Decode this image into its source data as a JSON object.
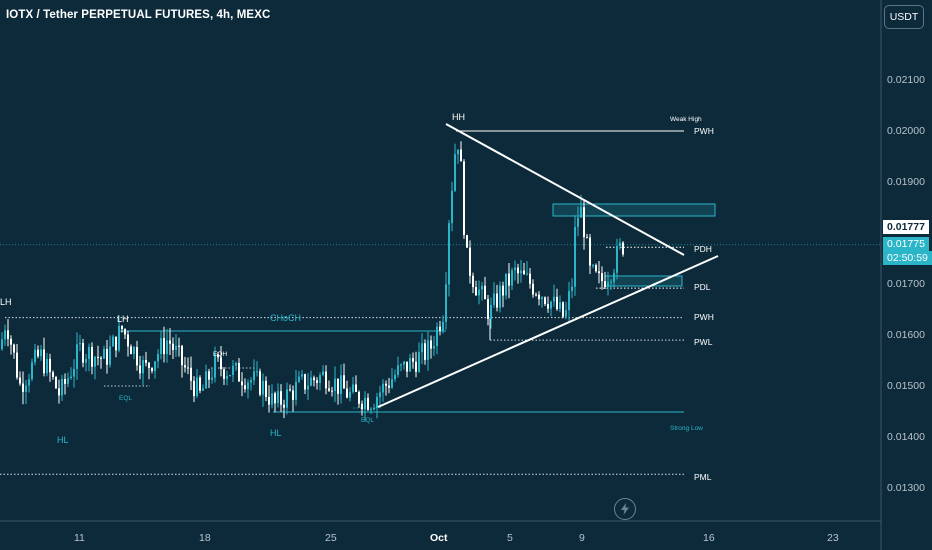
{
  "header": {
    "title": "IOTX / Tether PERPETUAL FUTURES, 4h, MEXC"
  },
  "toolbar": {
    "currency_label": "USDT"
  },
  "colors": {
    "background": "#0c2a3a",
    "bull": "#2bb5c9",
    "bear": "#ffffff",
    "accent": "#2bb5c9",
    "line_white": "#ffffff"
  },
  "price_axis": {
    "ticks": [
      "0.02100",
      "0.02000",
      "0.01900",
      "0.01700",
      "0.01600",
      "0.01500",
      "0.01400",
      "0.01300"
    ],
    "tick_values": [
      0.021,
      0.02,
      0.019,
      0.017,
      0.016,
      0.015,
      0.014,
      0.013
    ],
    "last_price_tag": "0.01777",
    "current_price": "0.01775",
    "countdown": "02:50:59"
  },
  "time_axis": {
    "labels": [
      "11",
      "18",
      "25",
      "Oct",
      "5",
      "9",
      "16",
      "23"
    ]
  },
  "annotations": {
    "hh": "HH",
    "lh_left": "LH",
    "lh_mid": "LH",
    "hl_left": "HL",
    "hl_mid": "HL",
    "choch": "CHoCH",
    "eqh": "EQH",
    "eql_left": "EQL",
    "eql_mid": "EQL",
    "weak_high": "Weak High",
    "strong_low": "Strong Low",
    "pwh_top": "PWH",
    "pdh": "PDH",
    "pdl": "PDL",
    "pwh_mid": "PWH",
    "pwl": "PWL",
    "pml": "PML"
  },
  "chart_data": {
    "type": "candlestick",
    "symbol": "IOTX / Tether PERPETUAL FUTURES",
    "interval": "4h",
    "exchange": "MEXC",
    "levels": {
      "weak_high_pwh": 0.01998,
      "pdh": 0.0177,
      "pdl": 0.0169,
      "pwh": 0.01632,
      "pwl": 0.01588,
      "strong_low": 0.01447,
      "pml": 0.01325
    },
    "close_path_keypoints": [
      {
        "x": "Sep 6",
        "y": 0.0155
      },
      {
        "x": "Sep 7",
        "y": 0.0163
      },
      {
        "x": "Sep 10",
        "y": 0.0152
      },
      {
        "x": "Sep 13",
        "y": 0.0161
      },
      {
        "x": "Sep 18",
        "y": 0.0152
      },
      {
        "x": "Sep 22",
        "y": 0.0145
      },
      {
        "x": "Sep 27",
        "y": 0.0152
      },
      {
        "x": "Sep 29",
        "y": 0.0147
      },
      {
        "x": "Oct 1",
        "y": 0.0162
      },
      {
        "x": "Oct 1",
        "y": 0.02
      },
      {
        "x": "Oct 3",
        "y": 0.0168
      },
      {
        "x": "Oct 5",
        "y": 0.0172
      },
      {
        "x": "Oct 8",
        "y": 0.0163
      },
      {
        "x": "Oct 9",
        "y": 0.0183
      },
      {
        "x": "Oct 10",
        "y": 0.0172
      },
      {
        "x": "Oct 12",
        "y": 0.01775
      }
    ],
    "ylim": [
      0.0125,
      0.0217
    ]
  }
}
